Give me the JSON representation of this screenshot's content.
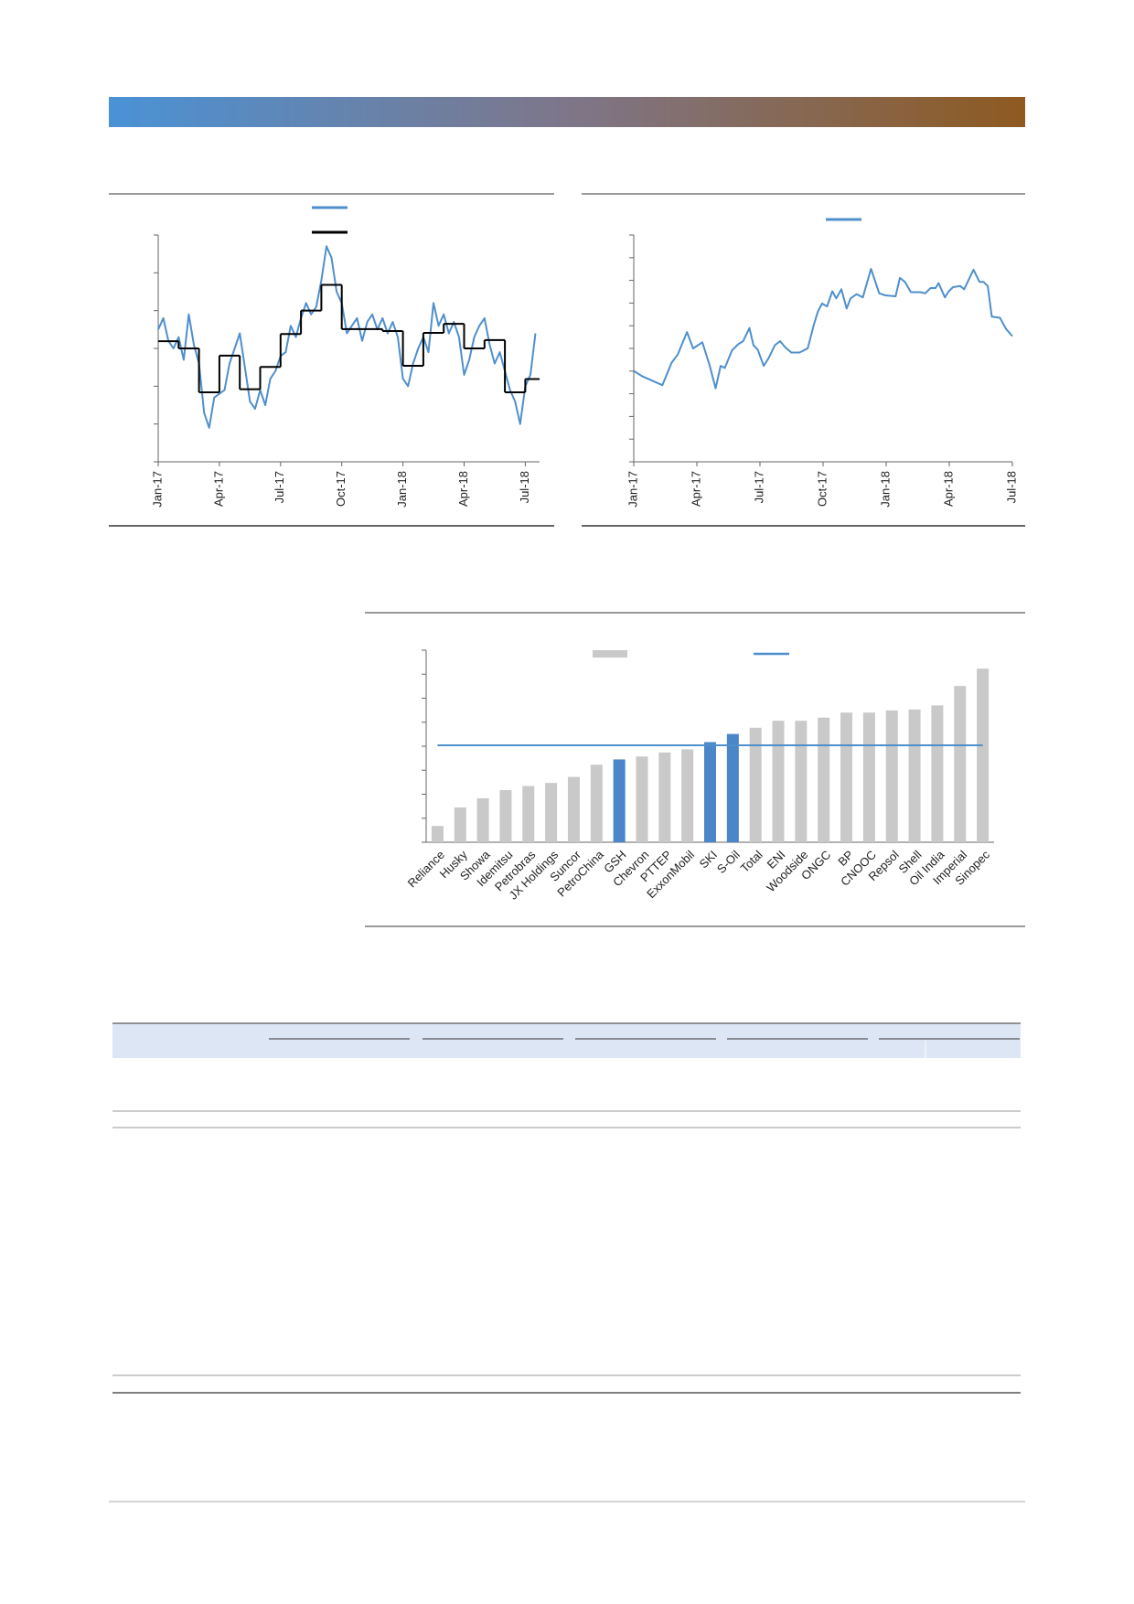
{
  "chart_data": [
    {
      "type": "line",
      "xlim": [
        0,
        18.7
      ],
      "ylim": [
        0,
        6
      ],
      "yticks": [
        0,
        1,
        2,
        3,
        4,
        5,
        6
      ],
      "xticks": [
        {
          "value": 0,
          "label": "Jan-17"
        },
        {
          "value": 3,
          "label": "Apr-17"
        },
        {
          "value": 6,
          "label": "Jul-17"
        },
        {
          "value": 9,
          "label": "Oct-17"
        },
        {
          "value": 12,
          "label": "Jan-18"
        },
        {
          "value": 15,
          "label": "Apr-18"
        },
        {
          "value": 18,
          "label": "Jul-18"
        }
      ],
      "series": [
        {
          "color": "#4f8fcc",
          "x": [
            0,
            0.25,
            0.5,
            0.75,
            1,
            1.25,
            1.5,
            1.75,
            2,
            2.25,
            2.5,
            2.75,
            3,
            3.25,
            3.5,
            3.75,
            4,
            4.25,
            4.5,
            4.75,
            5,
            5.25,
            5.5,
            5.75,
            6,
            6.25,
            6.5,
            6.75,
            7,
            7.25,
            7.5,
            7.75,
            8,
            8.25,
            8.5,
            8.75,
            9,
            9.25,
            9.5,
            9.75,
            10,
            10.25,
            10.5,
            10.75,
            11,
            11.25,
            11.5,
            11.75,
            12,
            12.25,
            12.5,
            12.75,
            13,
            13.25,
            13.5,
            13.75,
            14,
            14.25,
            14.5,
            14.75,
            15,
            15.25,
            15.5,
            15.75,
            16,
            16.25,
            16.5,
            16.75,
            17,
            17.25,
            17.5,
            17.75,
            18,
            18.25,
            18.5
          ],
          "values": [
            3.5,
            3.8,
            3.2,
            3.0,
            3.3,
            2.7,
            3.9,
            3.1,
            2.6,
            1.3,
            0.9,
            1.7,
            1.8,
            1.9,
            2.6,
            3.0,
            3.4,
            2.5,
            1.6,
            1.4,
            1.9,
            1.5,
            2.2,
            2.4,
            2.8,
            2.9,
            3.6,
            3.3,
            3.8,
            4.2,
            3.9,
            4.1,
            4.8,
            5.7,
            5.4,
            4.5,
            4.2,
            3.4,
            3.6,
            3.8,
            3.2,
            3.7,
            3.9,
            3.5,
            3.8,
            3.4,
            3.7,
            3.3,
            2.2,
            2.0,
            2.6,
            3.0,
            3.3,
            2.9,
            4.2,
            3.6,
            3.9,
            3.4,
            3.7,
            3.3,
            2.3,
            2.7,
            3.3,
            3.6,
            3.8,
            3.1,
            2.6,
            2.9,
            2.4,
            1.9,
            1.6,
            1.0,
            2.0,
            2.3,
            3.4
          ]
        },
        {
          "color": "#000000",
          "step": true,
          "x": [
            0,
            1,
            2,
            3,
            4,
            5,
            6,
            7,
            8,
            9,
            10,
            11,
            12,
            13,
            14,
            15,
            16,
            17,
            18
          ],
          "values": [
            3.19,
            3.0,
            1.84,
            2.81,
            1.92,
            2.51,
            3.38,
            4.0,
            4.68,
            3.51,
            3.51,
            3.46,
            2.54,
            3.41,
            3.65,
            3.0,
            3.22,
            1.84,
            2.19
          ]
        }
      ]
    },
    {
      "type": "line",
      "xlim": [
        0,
        18
      ],
      "ylim": [
        0,
        10
      ],
      "yticks": [
        0,
        1,
        2,
        3,
        4,
        5,
        6,
        7,
        8,
        9,
        10
      ],
      "xticks": [
        {
          "value": 0,
          "label": "Jan-17"
        },
        {
          "value": 3,
          "label": "Apr-17"
        },
        {
          "value": 6,
          "label": "Jul-17"
        },
        {
          "value": 9,
          "label": "Oct-17"
        },
        {
          "value": 12,
          "label": "Jan-18"
        },
        {
          "value": 15,
          "label": "Apr-18"
        },
        {
          "value": 18,
          "label": "Jul-18"
        }
      ],
      "series": [
        {
          "color": "#4f8fcc",
          "x": [
            0,
            0.39,
            1.36,
            1.8,
            2.09,
            2.53,
            2.82,
            3.26,
            3.6,
            3.89,
            4.13,
            4.33,
            4.67,
            4.96,
            5.2,
            5.5,
            5.69,
            5.89,
            6.18,
            6.42,
            6.71,
            6.96,
            7.2,
            7.49,
            7.88,
            8.27,
            8.56,
            8.75,
            8.95,
            9.19,
            9.44,
            9.63,
            9.87,
            10.12,
            10.31,
            10.6,
            10.89,
            11.28,
            11.67,
            11.96,
            12.45,
            12.65,
            12.89,
            13.18,
            13.62,
            13.86,
            14.11,
            14.35,
            14.49,
            14.79,
            14.98,
            15.18,
            15.52,
            15.71,
            16.15,
            16.44,
            16.63,
            16.83,
            17.02,
            17.41,
            17.7,
            18.0
          ],
          "values": [
            4.01,
            3.78,
            3.38,
            4.37,
            4.73,
            5.72,
            5.0,
            5.27,
            4.28,
            3.24,
            4.23,
            4.14,
            4.91,
            5.18,
            5.32,
            5.9,
            5.14,
            4.95,
            4.23,
            4.59,
            5.14,
            5.32,
            5.05,
            4.82,
            4.82,
            5.0,
            6.04,
            6.62,
            6.98,
            6.85,
            7.52,
            7.21,
            7.61,
            6.76,
            7.21,
            7.39,
            7.25,
            8.51,
            7.43,
            7.34,
            7.3,
            8.11,
            7.93,
            7.48,
            7.48,
            7.43,
            7.66,
            7.66,
            7.88,
            7.25,
            7.52,
            7.7,
            7.75,
            7.61,
            8.47,
            7.93,
            7.93,
            7.75,
            6.4,
            6.35,
            5.86,
            5.54
          ]
        }
      ]
    },
    {
      "type": "bar",
      "categories": [
        "Reliance",
        "Husky",
        "Showa",
        "Idemitsu",
        "Petrobras",
        "JX Holdings",
        "Suncor",
        "PetroChina",
        "GSH",
        "Chevron",
        "PTTEP",
        "ExxonMobil",
        "SKI",
        "S-Oil",
        "Total",
        "ENI",
        "Woodside",
        "ONGC",
        "BP",
        "CNOOC",
        "Repsol",
        "Shell",
        "Oil India",
        "Imperial",
        "Sinopec"
      ],
      "ylim": [
        0,
        8
      ],
      "yticks": [
        0,
        1,
        2,
        3,
        4,
        5,
        6,
        7,
        8
      ],
      "series": [
        {
          "type": "bar",
          "color": "#c9c9c9",
          "colors": [
            "#c9c9c9",
            "#c9c9c9",
            "#c9c9c9",
            "#c9c9c9",
            "#c9c9c9",
            "#c9c9c9",
            "#c9c9c9",
            "#c9c9c9",
            "#4a86c8",
            "#c9c9c9",
            "#c9c9c9",
            "#c9c9c9",
            "#4a86c8",
            "#4a86c8",
            "#c9c9c9",
            "#c9c9c9",
            "#c9c9c9",
            "#c9c9c9",
            "#c9c9c9",
            "#c9c9c9",
            "#c9c9c9",
            "#c9c9c9",
            "#c9c9c9",
            "#c9c9c9",
            "#c9c9c9"
          ],
          "values": [
            0.68,
            1.45,
            1.83,
            2.17,
            2.34,
            2.47,
            2.72,
            3.23,
            3.45,
            3.57,
            3.74,
            3.87,
            4.17,
            4.51,
            4.77,
            5.06,
            5.06,
            5.19,
            5.4,
            5.4,
            5.49,
            5.53,
            5.7,
            6.51,
            7.23
          ]
        },
        {
          "type": "hline",
          "color": "#4f8fcc",
          "value": 4.04
        }
      ]
    }
  ]
}
